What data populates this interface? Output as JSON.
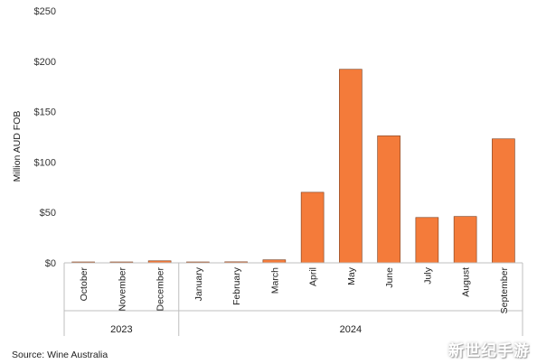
{
  "chart_data": {
    "type": "bar",
    "title": "",
    "xlabel": "",
    "ylabel": "Million AUD FOB",
    "ylim": [
      0,
      250
    ],
    "yticks": [
      0,
      50,
      100,
      150,
      200,
      250
    ],
    "ytick_labels": [
      "$0",
      "$50",
      "$100",
      "$150",
      "$200",
      "$250"
    ],
    "grid": false,
    "bar_color": "#F47B3A",
    "categories": [
      "October",
      "November",
      "December",
      "January",
      "February",
      "March",
      "April",
      "May",
      "June",
      "July",
      "August",
      "September"
    ],
    "values": [
      0.5,
      0.8,
      2.0,
      0.5,
      1.0,
      3.0,
      70,
      192,
      126,
      45,
      46,
      123
    ],
    "groups": [
      {
        "label": "2023",
        "count": 3
      },
      {
        "label": "2024",
        "count": 9
      }
    ]
  },
  "source": "Source: Wine Australia",
  "watermark": "新世纪手游"
}
